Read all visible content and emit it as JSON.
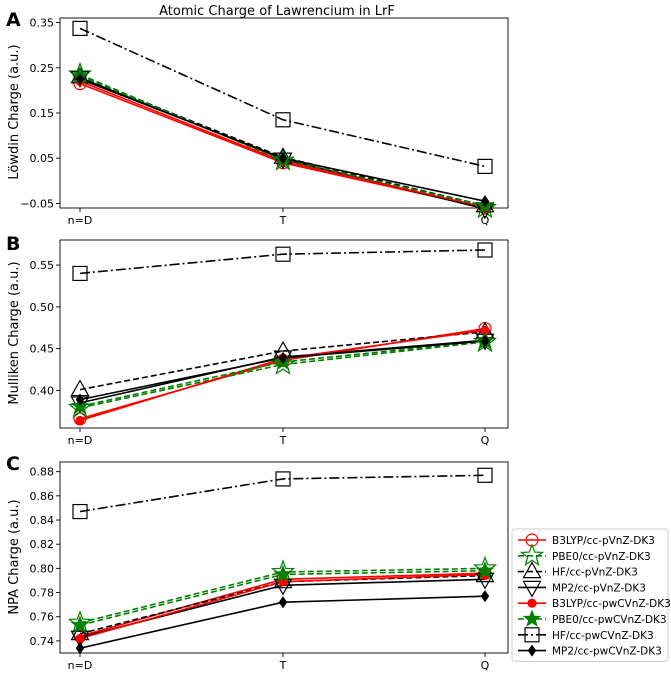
{
  "figure_title": "Atomic Charge of Lawrencium in LrF",
  "chart_data": [
    {
      "panel_label": "A",
      "type": "line",
      "categories": [
        "n=D",
        "T",
        "Q"
      ],
      "ylabel": "Löwdin Charge (a.u.)",
      "ylim": [
        -0.06,
        0.36
      ],
      "yticks": [
        0.35,
        0.25,
        0.15,
        0.05,
        -0.05
      ],
      "ytick_labels": [
        "0.35",
        "0.25",
        "0.15",
        "0.05",
        "−0.05"
      ],
      "series": [
        {
          "name": "B3LYP/cc-pVnZ-DK3",
          "values": [
            0.215,
            0.04,
            -0.06
          ]
        },
        {
          "name": "PBE0/cc-pVnZ-DK3",
          "values": [
            0.235,
            0.045,
            -0.06
          ]
        },
        {
          "name": "HF/cc-pVnZ-DK3",
          "values": [
            0.23,
            0.052,
            -0.055
          ]
        },
        {
          "name": "MP2/cc-pVnZ-DK3",
          "values": [
            0.228,
            0.048,
            -0.062
          ]
        },
        {
          "name": "B3LYP/cc-pwCVnZ-DK3",
          "values": [
            0.22,
            0.043,
            -0.058
          ]
        },
        {
          "name": "PBE0/cc-pwCVnZ-DK3",
          "values": [
            0.232,
            0.047,
            -0.055
          ]
        },
        {
          "name": "HF/cc-pwCVnZ-DK3",
          "values": [
            0.337,
            0.135,
            0.032
          ]
        },
        {
          "name": "MP2/cc-pwCVnZ-DK3",
          "values": [
            0.225,
            0.05,
            -0.045
          ]
        }
      ]
    },
    {
      "panel_label": "B",
      "type": "line",
      "categories": [
        "n=D",
        "T",
        "Q"
      ],
      "ylabel": "Mulliken Charge (a.u.)",
      "ylim": [
        0.355,
        0.58
      ],
      "yticks": [
        0.4,
        0.45,
        0.5,
        0.55
      ],
      "ytick_labels": [
        "0.40",
        "0.45",
        "0.50",
        "0.55"
      ],
      "series": [
        {
          "name": "B3LYP/cc-pVnZ-DK3",
          "values": [
            0.366,
            0.436,
            0.474
          ]
        },
        {
          "name": "PBE0/cc-pVnZ-DK3",
          "values": [
            0.379,
            0.431,
            0.458
          ]
        },
        {
          "name": "HF/cc-pVnZ-DK3",
          "values": [
            0.401,
            0.447,
            0.47
          ]
        },
        {
          "name": "MP2/cc-pVnZ-DK3",
          "values": [
            0.385,
            0.44,
            0.46
          ]
        },
        {
          "name": "B3LYP/cc-pwCVnZ-DK3",
          "values": [
            0.364,
            0.438,
            0.472
          ]
        },
        {
          "name": "PBE0/cc-pwCVnZ-DK3",
          "values": [
            0.381,
            0.434,
            0.459
          ]
        },
        {
          "name": "HF/cc-pwCVnZ-DK3",
          "values": [
            0.54,
            0.563,
            0.568
          ]
        },
        {
          "name": "MP2/cc-pwCVnZ-DK3",
          "values": [
            0.389,
            0.439,
            0.459
          ]
        }
      ]
    },
    {
      "panel_label": "C",
      "type": "line",
      "categories": [
        "n=D",
        "T",
        "Q"
      ],
      "ylabel": "NPA Charge (a.u.)",
      "ylim": [
        0.73,
        0.888
      ],
      "yticks": [
        0.74,
        0.76,
        0.78,
        0.8,
        0.82,
        0.84,
        0.86,
        0.88
      ],
      "ytick_labels": [
        "0.74",
        "0.76",
        "0.78",
        "0.80",
        "0.82",
        "0.84",
        "0.86",
        "0.88"
      ],
      "series": [
        {
          "name": "B3LYP/cc-pVnZ-DK3",
          "values": [
            0.744,
            0.791,
            0.796
          ]
        },
        {
          "name": "PBE0/cc-pVnZ-DK3",
          "values": [
            0.755,
            0.797,
            0.8
          ]
        },
        {
          "name": "HF/cc-pVnZ-DK3",
          "values": [
            0.746,
            0.789,
            0.794
          ]
        },
        {
          "name": "MP2/cc-pVnZ-DK3",
          "values": [
            0.743,
            0.786,
            0.791
          ]
        },
        {
          "name": "B3LYP/cc-pwCVnZ-DK3",
          "values": [
            0.742,
            0.789,
            0.795
          ]
        },
        {
          "name": "PBE0/cc-pwCVnZ-DK3",
          "values": [
            0.753,
            0.795,
            0.798
          ]
        },
        {
          "name": "HF/cc-pwCVnZ-DK3",
          "values": [
            0.847,
            0.874,
            0.877
          ]
        },
        {
          "name": "MP2/cc-pwCVnZ-DK3",
          "values": [
            0.734,
            0.772,
            0.777
          ]
        }
      ]
    }
  ],
  "legend": {
    "placement": "right of panel C",
    "entries": [
      {
        "name": "B3LYP/cc-pVnZ-DK3",
        "color": "#ff0000",
        "marker": "circle-open",
        "dash": "solid"
      },
      {
        "name": "PBE0/cc-pVnZ-DK3",
        "color": "#008000",
        "marker": "star-open",
        "dash": "dashed"
      },
      {
        "name": "HF/cc-pVnZ-DK3",
        "color": "#000000",
        "marker": "triangle-up-open",
        "dash": "dashed"
      },
      {
        "name": "MP2/cc-pVnZ-DK3",
        "color": "#000000",
        "marker": "triangle-down-open",
        "dash": "solid"
      },
      {
        "name": "B3LYP/cc-pwCVnZ-DK3",
        "color": "#ff0000",
        "marker": "circle-filled",
        "dash": "solid"
      },
      {
        "name": "PBE0/cc-pwCVnZ-DK3",
        "color": "#008000",
        "marker": "star-filled",
        "dash": "dashed"
      },
      {
        "name": "HF/cc-pwCVnZ-DK3",
        "color": "#000000",
        "marker": "square-open",
        "dash": "dashdot"
      },
      {
        "name": "MP2/cc-pwCVnZ-DK3",
        "color": "#000000",
        "marker": "diamond-filled",
        "dash": "solid"
      }
    ]
  }
}
